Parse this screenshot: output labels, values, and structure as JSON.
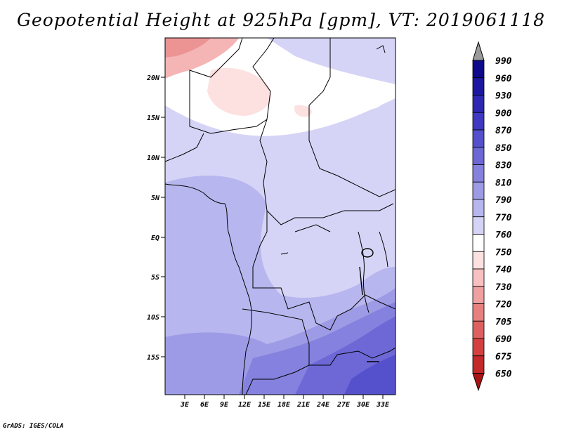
{
  "title": "Geopotential Height at 925hPa [gpm], VT: 2019061118",
  "credit": "GrADS: IGES/COLA",
  "map": {
    "lon_labels": [
      "3E",
      "6E",
      "9E",
      "12E",
      "15E",
      "18E",
      "21E",
      "24E",
      "27E",
      "30E",
      "33E"
    ],
    "lat_labels": [
      "20N",
      "15N",
      "10N",
      "5N",
      "EQ",
      "5S",
      "10S",
      "15S"
    ],
    "lon_range": [
      0,
      35
    ],
    "lat_range": [
      -20,
      25
    ]
  },
  "colorbar": {
    "levels": [
      "990",
      "960",
      "930",
      "900",
      "870",
      "850",
      "830",
      "810",
      "790",
      "770",
      "760",
      "750",
      "740",
      "730",
      "720",
      "705",
      "690",
      "675",
      "650"
    ],
    "colors": [
      "#0d0a8c",
      "#1c17a3",
      "#2d27b3",
      "#3e38c2",
      "#5550cc",
      "#6d68d6",
      "#8581de",
      "#9e9be6",
      "#b8b6ee",
      "#d5d4f6",
      "#ffffff",
      "#fde0e0",
      "#f8c0c0",
      "#f0a0a0",
      "#e88080",
      "#df6060",
      "#d44040",
      "#c42828",
      "#a81414"
    ]
  }
}
